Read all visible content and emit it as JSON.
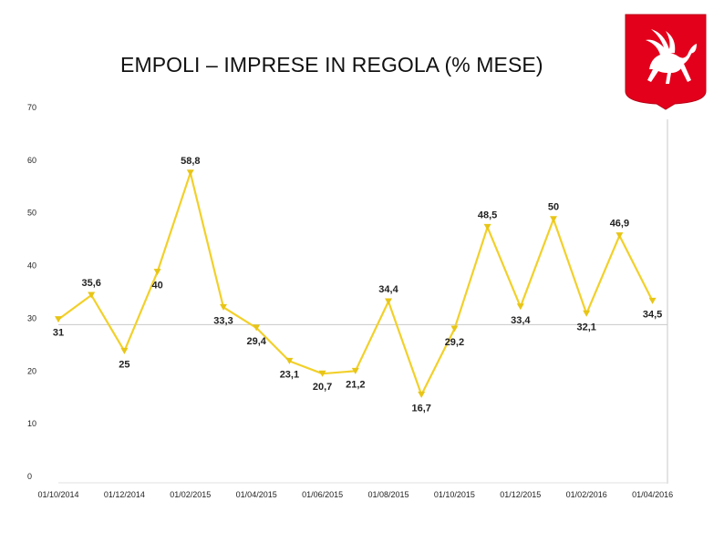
{
  "title": "EMPOLI – IMPRESE IN REGOLA (% MESE)",
  "colors": {
    "series": "#f2d02a",
    "marker": "#e8c516",
    "reference_line": "#c8c8c8",
    "logo_red": "#e3001b"
  },
  "logo": {
    "icon": "tuscany-pegasus-crest-icon"
  },
  "chart_data": {
    "type": "line",
    "title": "EMPOLI – IMPRESE IN REGOLA (% MESE)",
    "xlabel": "",
    "ylabel": "",
    "ylim": [
      0,
      70
    ],
    "y_ticks": [
      0,
      10,
      20,
      30,
      40,
      50,
      60,
      70
    ],
    "x_tick_labels": [
      "01/10/2014",
      "01/12/2014",
      "01/02/2015",
      "01/04/2015",
      "01/06/2015",
      "01/08/2015",
      "01/10/2015",
      "01/12/2015",
      "01/02/2016",
      "01/04/2016"
    ],
    "grid": false,
    "reference_line": 30,
    "x": [
      "01/10/2014",
      "01/11/2014",
      "01/12/2014",
      "01/01/2015",
      "01/02/2015",
      "01/03/2015",
      "01/04/2015",
      "01/05/2015",
      "01/06/2015",
      "01/07/2015",
      "01/08/2015",
      "01/09/2015",
      "01/10/2015",
      "01/11/2015",
      "01/12/2015",
      "01/01/2016",
      "01/02/2016",
      "01/03/2016",
      "01/04/2016"
    ],
    "values": [
      31,
      35.6,
      25,
      40,
      58.8,
      33.3,
      29.4,
      23.1,
      20.7,
      21.2,
      34.4,
      16.7,
      29.2,
      48.5,
      33.4,
      50,
      32.1,
      46.9,
      34.5
    ],
    "labels": [
      "31",
      "35,6",
      "25",
      "40",
      "58,8",
      "33,3",
      "29,4",
      "23,1",
      "20,7",
      "21,2",
      "34,4",
      "16,7",
      "29,2",
      "48,5",
      "33,4",
      "50",
      "32,1",
      "46,9",
      "34,5"
    ]
  }
}
